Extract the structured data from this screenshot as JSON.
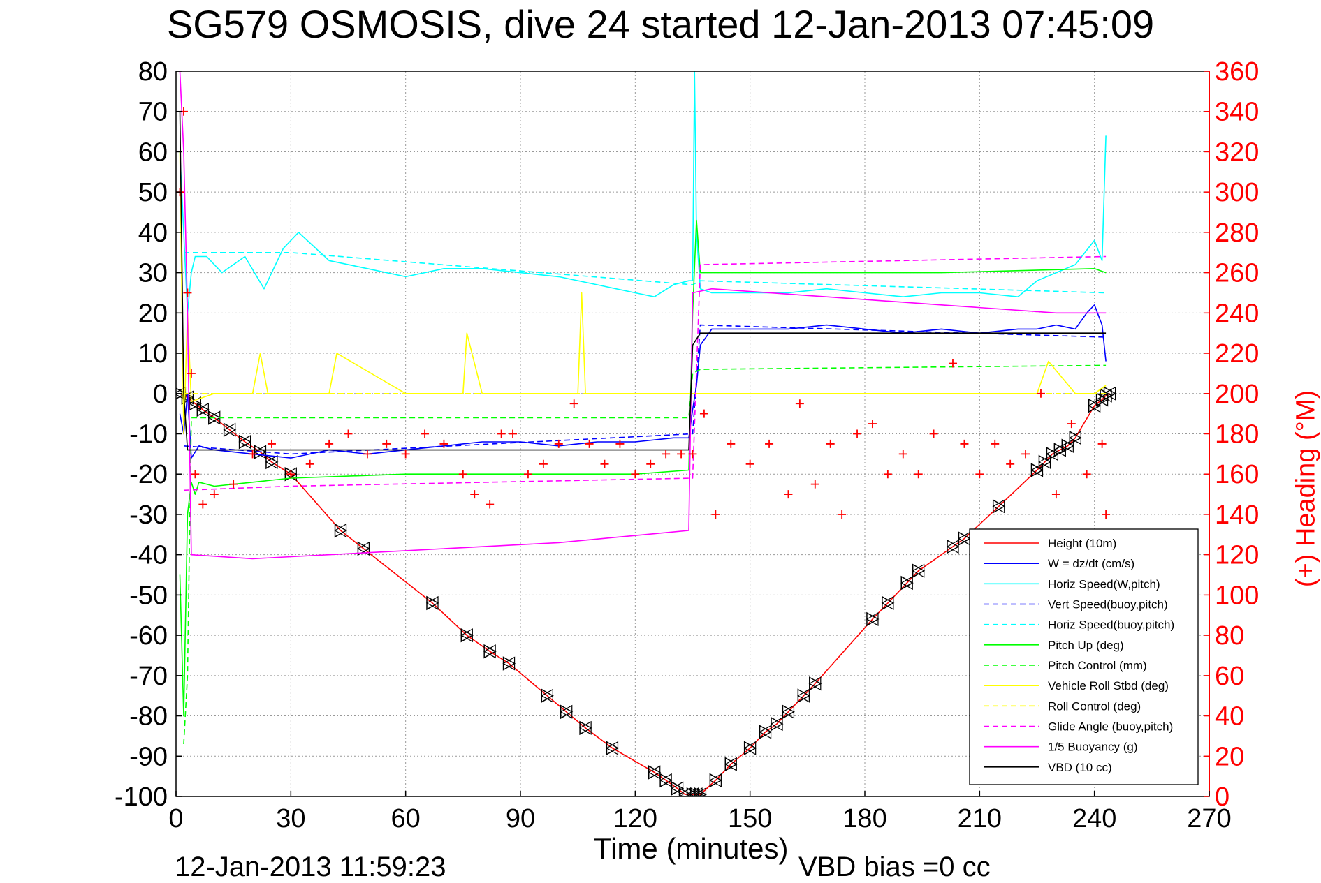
{
  "header": {
    "title": "SG579 OSMOSIS, dive 24 started 12-Jan-2013 07:45:09"
  },
  "footer": {
    "timestamp": "12-Jan-2013 11:59:23",
    "vbd_bias": "VBD bias =0 cc"
  },
  "colors": {
    "height": "#ff0000",
    "w": "#0000ff",
    "horiz": "#00ffff",
    "pitch": "#00ff00",
    "roll": "#ffff00",
    "glide": "#ff00ff",
    "vbd": "#000000",
    "heading": "#ff0000"
  },
  "chart_data": {
    "type": "line",
    "title": "SG579 OSMOSIS, dive 24 started 12-Jan-2013 07:45:09",
    "xlabel": "Time (minutes)",
    "ylabel_right": "(+) Heading (°M)",
    "xlim": [
      0,
      270
    ],
    "ylim_left": [
      -100,
      80
    ],
    "ylim_right": [
      0,
      360
    ],
    "x_ticks": [
      0,
      30,
      60,
      90,
      120,
      150,
      180,
      210,
      240,
      270
    ],
    "y_ticks_left": [
      80,
      70,
      60,
      50,
      40,
      30,
      20,
      10,
      0,
      -10,
      -20,
      -30,
      -40,
      -50,
      -60,
      -70,
      -80,
      -90,
      -100
    ],
    "y_ticks_right": [
      360,
      340,
      320,
      300,
      280,
      260,
      240,
      220,
      200,
      180,
      160,
      140,
      120,
      100,
      80,
      60,
      40,
      20,
      0
    ],
    "grid": true,
    "legend_position": "lower-right",
    "legend": [
      {
        "label": "Height (10m)",
        "color": "#ff0000",
        "style": "solid"
      },
      {
        "label": "W = dz/dt (cm/s)",
        "color": "#0000ff",
        "style": "solid"
      },
      {
        "label": "Horiz Speed(W,pitch)",
        "color": "#00ffff",
        "style": "solid"
      },
      {
        "label": "Vert Speed(buoy,pitch)",
        "color": "#0000ff",
        "style": "dashed"
      },
      {
        "label": "Horiz Speed(buoy,pitch)",
        "color": "#00ffff",
        "style": "dashed"
      },
      {
        "label": "Pitch Up (deg)",
        "color": "#00ff00",
        "style": "solid"
      },
      {
        "label": "Pitch Control (mm)",
        "color": "#00ff00",
        "style": "dashed"
      },
      {
        "label": "Vehicle Roll Stbd (deg)",
        "color": "#ffff00",
        "style": "solid"
      },
      {
        "label": "Roll Control (deg)",
        "color": "#ffff00",
        "style": "dashed"
      },
      {
        "label": "Glide Angle (buoy,pitch)",
        "color": "#ff00ff",
        "style": "dashed"
      },
      {
        "label": "1/5 Buoyancy (g)",
        "color": "#ff00ff",
        "style": "solid"
      },
      {
        "label": "VBD (10 cc)",
        "color": "#000000",
        "style": "solid"
      }
    ],
    "series": [
      {
        "name": "Height (10m)",
        "axis": "left",
        "color": "#ff0000",
        "style": "solid",
        "marker": "triangle",
        "x": [
          1,
          3,
          5,
          7,
          10,
          14,
          18,
          22,
          25,
          30,
          43,
          49,
          67,
          76,
          82,
          87,
          97,
          102,
          107,
          114,
          125,
          128,
          131,
          133,
          135,
          136,
          137,
          141,
          145,
          150,
          154,
          157,
          160,
          164,
          167,
          182,
          186,
          191,
          194,
          203,
          206,
          215,
          225,
          227,
          229,
          231,
          233,
          235,
          240,
          242,
          243,
          244
        ],
        "y": [
          0,
          -1,
          -2.5,
          -4,
          -6,
          -9,
          -12,
          -14.5,
          -17,
          -20,
          -34,
          -38.5,
          -52,
          -60,
          -64,
          -67,
          -75,
          -79,
          -83,
          -88,
          -94,
          -96,
          -98,
          -99.5,
          -99.5,
          -99.5,
          -99.5,
          -96,
          -92,
          -88,
          -84,
          -82,
          -79,
          -75,
          -72,
          -56,
          -52,
          -47,
          -44,
          -38,
          -36,
          -28,
          -19,
          -17,
          -15,
          -14,
          -13,
          -11,
          -3,
          -1.5,
          -0.5,
          0
        ]
      },
      {
        "name": "W = dz/dt (cm/s)",
        "axis": "left",
        "color": "#0000ff",
        "style": "solid",
        "x": [
          1,
          2,
          3,
          4,
          6,
          10,
          20,
          30,
          40,
          50,
          60,
          70,
          80,
          90,
          100,
          110,
          120,
          130,
          134,
          135,
          136,
          137,
          140,
          150,
          160,
          170,
          180,
          190,
          200,
          210,
          220,
          225,
          230,
          235,
          238,
          240,
          242,
          243
        ],
        "y": [
          -5,
          -10,
          0,
          -16,
          -13,
          -14,
          -15,
          -16,
          -14,
          -15,
          -14,
          -13,
          -12,
          -12,
          -13,
          -12,
          -12,
          -11,
          -11,
          -4,
          2,
          12,
          16,
          16,
          16,
          17,
          16,
          15,
          16,
          15,
          16,
          16,
          17,
          16,
          20,
          22,
          17,
          8
        ]
      },
      {
        "name": "Horiz Speed(W,pitch)",
        "axis": "left",
        "color": "#00ffff",
        "style": "solid",
        "x": [
          1,
          2,
          3,
          4,
          5,
          8,
          12,
          18,
          23,
          28,
          32,
          40,
          50,
          60,
          70,
          80,
          90,
          100,
          110,
          120,
          125,
          130,
          134,
          135,
          135.5,
          136,
          137,
          140,
          150,
          160,
          170,
          180,
          190,
          200,
          210,
          220,
          225,
          230,
          235,
          240,
          242,
          243
        ],
        "y": [
          60,
          40,
          20,
          30,
          34,
          34,
          30,
          34,
          26,
          36,
          40,
          33,
          31,
          29,
          31,
          31,
          30,
          29,
          27,
          25,
          24,
          27,
          28,
          28,
          80,
          40,
          26,
          25,
          25,
          25,
          26,
          25,
          24,
          25,
          25,
          24,
          28,
          30,
          32,
          38,
          33,
          64
        ]
      },
      {
        "name": "Vert Speed(buoy,pitch)",
        "axis": "left",
        "color": "#0000ff",
        "style": "dashed",
        "x": [
          2,
          30,
          135,
          137,
          243
        ],
        "y": [
          -13,
          -15,
          -10,
          17,
          14
        ]
      },
      {
        "name": "Horiz Speed(buoy,pitch)",
        "axis": "left",
        "color": "#00ffff",
        "style": "dashed",
        "x": [
          2,
          30,
          135,
          137,
          243
        ],
        "y": [
          35,
          35,
          27,
          28,
          25
        ]
      },
      {
        "name": "Pitch Up (deg)",
        "axis": "left",
        "color": "#00ff00",
        "style": "solid",
        "x": [
          1,
          2,
          3,
          4,
          5,
          6,
          10,
          20,
          30,
          60,
          90,
          120,
          134,
          135,
          136,
          137,
          140,
          160,
          200,
          240,
          243
        ],
        "y": [
          -45,
          -80,
          -30,
          -22,
          -25,
          -22,
          -23,
          -22,
          -21,
          -20,
          -20,
          -20,
          -19,
          20,
          43,
          30,
          30,
          30,
          30,
          31,
          30
        ]
      },
      {
        "name": "Pitch Control (mm)",
        "axis": "left",
        "color": "#00ff00",
        "style": "dashed",
        "x": [
          2,
          3,
          4,
          30,
          134,
          135,
          137,
          243
        ],
        "y": [
          -87,
          -70,
          -6,
          -6,
          -6,
          5,
          6,
          7
        ]
      },
      {
        "name": "Vehicle Roll Stbd (deg)",
        "axis": "left",
        "color": "#ffff00",
        "style": "solid",
        "x": [
          1,
          2,
          3,
          4,
          10,
          20,
          22,
          24,
          40,
          42,
          60,
          70,
          75,
          76,
          80,
          90,
          100,
          105,
          106,
          107,
          110,
          130,
          135,
          140,
          150,
          160,
          180,
          200,
          225,
          228,
          235,
          240,
          243
        ],
        "y": [
          60,
          -10,
          20,
          -2,
          0,
          0,
          10,
          0,
          0,
          10,
          0,
          0,
          0,
          15,
          0,
          0,
          0,
          0,
          25,
          0,
          0,
          0,
          0,
          0,
          0,
          0,
          0,
          0,
          0,
          8,
          0,
          0,
          2
        ]
      },
      {
        "name": "Roll Control (deg)",
        "axis": "left",
        "color": "#ffff00",
        "style": "dashed",
        "x": [
          2,
          30,
          135,
          243
        ],
        "y": [
          0,
          0,
          0,
          0
        ]
      },
      {
        "name": "Glide Angle (buoy,pitch)",
        "axis": "left",
        "color": "#ff00ff",
        "style": "dashed",
        "x": [
          2,
          30,
          135,
          137,
          243
        ],
        "y": [
          -24,
          -23,
          -21,
          32,
          34
        ]
      },
      {
        "name": "1/5 Buoyancy (g)",
        "axis": "left",
        "color": "#ff00ff",
        "style": "solid",
        "x": [
          1,
          2,
          3,
          4,
          20,
          60,
          100,
          134,
          135,
          140,
          170,
          200,
          230,
          243
        ],
        "y": [
          80,
          60,
          20,
          -40,
          -41,
          -39,
          -37,
          -34,
          25,
          26,
          24,
          22,
          20,
          20
        ]
      },
      {
        "name": "VBD (10 cc)",
        "axis": "left",
        "color": "#000000",
        "style": "solid",
        "x": [
          1,
          2,
          3,
          30,
          134,
          135,
          137,
          243
        ],
        "y": [
          70,
          0,
          -14,
          -14,
          -14,
          12,
          15,
          15
        ]
      },
      {
        "name": "Heading",
        "axis": "right",
        "color": "#ff0000",
        "style": "markers",
        "marker": "+",
        "x": [
          1,
          2,
          3,
          4,
          5,
          7,
          10,
          15,
          20,
          25,
          30,
          35,
          40,
          45,
          50,
          55,
          60,
          65,
          70,
          75,
          78,
          82,
          85,
          88,
          92,
          96,
          100,
          104,
          108,
          112,
          116,
          120,
          124,
          128,
          132,
          135,
          138,
          141,
          145,
          150,
          155,
          160,
          163,
          167,
          171,
          174,
          178,
          182,
          186,
          190,
          194,
          198,
          203,
          206,
          210,
          214,
          218,
          222,
          226,
          230,
          234,
          238,
          242,
          243
        ],
        "y": [
          300,
          340,
          250,
          210,
          160,
          145,
          150,
          155,
          170,
          175,
          160,
          165,
          175,
          180,
          170,
          175,
          170,
          180,
          175,
          160,
          150,
          145,
          180,
          180,
          160,
          165,
          175,
          195,
          175,
          165,
          175,
          160,
          165,
          170,
          170,
          170,
          190,
          140,
          175,
          165,
          175,
          150,
          195,
          155,
          175,
          140,
          180,
          185,
          160,
          170,
          160,
          180,
          215,
          175,
          160,
          175,
          165,
          170,
          200,
          150,
          185,
          160,
          175,
          140
        ]
      }
    ]
  }
}
